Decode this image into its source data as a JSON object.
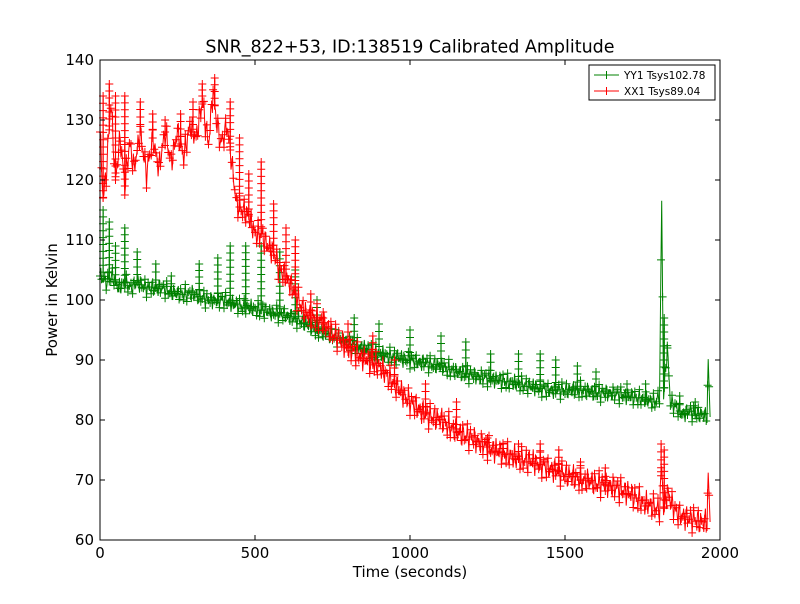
{
  "chart_data": {
    "type": "line",
    "title": "SNR_822+53, ID:138519 Calibrated Amplitude",
    "xlabel": "Time (seconds)",
    "ylabel": "Power in Kelvin",
    "xlim": [
      0,
      2000
    ],
    "ylim": [
      60,
      140
    ],
    "xticks": [
      {
        "value": 0,
        "label": "0"
      },
      {
        "value": 500,
        "label": "500"
      },
      {
        "value": 1000,
        "label": "1000"
      },
      {
        "value": 1500,
        "label": "1500"
      },
      {
        "value": 2000,
        "label": "2000"
      }
    ],
    "yticks": [
      {
        "value": 60,
        "label": "60"
      },
      {
        "value": 70,
        "label": "70"
      },
      {
        "value": 80,
        "label": "80"
      },
      {
        "value": 90,
        "label": "90"
      },
      {
        "value": 100,
        "label": "100"
      },
      {
        "value": 110,
        "label": "110"
      },
      {
        "value": 120,
        "label": "120"
      },
      {
        "value": 130,
        "label": "130"
      },
      {
        "value": 140,
        "label": "140"
      }
    ],
    "grid": false,
    "legend_position": "top-right",
    "marker": "+",
    "series": [
      {
        "name": "YY1 Tsys102.78",
        "color": "#008000",
        "points": [
          [
            0,
            104
          ],
          [
            20,
            103
          ],
          [
            40,
            104
          ],
          [
            60,
            102
          ],
          [
            80,
            103
          ],
          [
            100,
            102
          ],
          [
            120,
            103
          ],
          [
            150,
            102
          ],
          [
            200,
            102
          ],
          [
            250,
            101
          ],
          [
            300,
            101
          ],
          [
            350,
            100
          ],
          [
            400,
            100
          ],
          [
            450,
            99
          ],
          [
            500,
            98.5
          ],
          [
            550,
            98
          ],
          [
            600,
            97.5
          ],
          [
            650,
            96.5
          ],
          [
            700,
            95
          ],
          [
            750,
            94
          ],
          [
            800,
            93
          ],
          [
            850,
            92
          ],
          [
            900,
            91
          ],
          [
            950,
            90.5
          ],
          [
            1000,
            90
          ],
          [
            1050,
            89.5
          ],
          [
            1100,
            89
          ],
          [
            1150,
            88
          ],
          [
            1200,
            87.5
          ],
          [
            1250,
            87
          ],
          [
            1300,
            86.5
          ],
          [
            1350,
            86
          ],
          [
            1400,
            85.5
          ],
          [
            1450,
            85
          ],
          [
            1500,
            85
          ],
          [
            1550,
            85
          ],
          [
            1600,
            84.5
          ],
          [
            1650,
            84.5
          ],
          [
            1700,
            84
          ],
          [
            1750,
            83.5
          ],
          [
            1790,
            83
          ],
          [
            1805,
            84
          ],
          [
            1812,
            117
          ],
          [
            1818,
            84
          ],
          [
            1830,
            92
          ],
          [
            1840,
            83
          ],
          [
            1860,
            82
          ],
          [
            1880,
            81
          ],
          [
            1900,
            81.5
          ],
          [
            1920,
            81
          ],
          [
            1940,
            81
          ],
          [
            1958,
            80.5
          ],
          [
            1962,
            90
          ],
          [
            1968,
            80.5
          ]
        ],
        "spikes": [
          [
            10,
            115
          ],
          [
            30,
            113
          ],
          [
            50,
            109
          ],
          [
            80,
            112
          ],
          [
            120,
            108
          ],
          [
            180,
            106
          ],
          [
            230,
            104
          ],
          [
            320,
            106
          ],
          [
            380,
            107
          ],
          [
            420,
            109
          ],
          [
            470,
            109
          ],
          [
            520,
            109
          ],
          [
            580,
            108
          ],
          [
            630,
            105
          ],
          [
            700,
            100
          ],
          [
            820,
            97
          ],
          [
            900,
            96
          ],
          [
            1000,
            95
          ],
          [
            1100,
            94
          ],
          [
            1180,
            93
          ],
          [
            1260,
            91
          ],
          [
            1350,
            91
          ],
          [
            1420,
            91
          ],
          [
            1470,
            90
          ],
          [
            1540,
            89
          ],
          [
            1600,
            88
          ],
          [
            1700,
            86
          ],
          [
            1760,
            86
          ],
          [
            1820,
            97
          ],
          [
            1830,
            92
          ],
          [
            1870,
            84
          ],
          [
            1920,
            83
          ]
        ]
      },
      {
        "name": "XX1 Tsys89.04",
        "color": "#ff0000",
        "points": [
          [
            0,
            128
          ],
          [
            10,
            117
          ],
          [
            20,
            121
          ],
          [
            35,
            133
          ],
          [
            50,
            120
          ],
          [
            65,
            127
          ],
          [
            80,
            119
          ],
          [
            95,
            126
          ],
          [
            110,
            122
          ],
          [
            130,
            128
          ],
          [
            150,
            121
          ],
          [
            170,
            127
          ],
          [
            190,
            122
          ],
          [
            210,
            128
          ],
          [
            230,
            123
          ],
          [
            250,
            128
          ],
          [
            270,
            124
          ],
          [
            290,
            129
          ],
          [
            310,
            127
          ],
          [
            330,
            133
          ],
          [
            350,
            126
          ],
          [
            365,
            135
          ],
          [
            375,
            130
          ],
          [
            390,
            126
          ],
          [
            410,
            129
          ],
          [
            425,
            123
          ],
          [
            440,
            116
          ],
          [
            460,
            115
          ],
          [
            480,
            114
          ],
          [
            500,
            111
          ],
          [
            520,
            111
          ],
          [
            540,
            109
          ],
          [
            560,
            108
          ],
          [
            580,
            105
          ],
          [
            600,
            104
          ],
          [
            620,
            102
          ],
          [
            640,
            100
          ],
          [
            660,
            98
          ],
          [
            680,
            97
          ],
          [
            700,
            97
          ],
          [
            720,
            96
          ],
          [
            740,
            95
          ],
          [
            760,
            94
          ],
          [
            780,
            93
          ],
          [
            800,
            92
          ],
          [
            830,
            91
          ],
          [
            860,
            90
          ],
          [
            900,
            89
          ],
          [
            950,
            86
          ],
          [
            1000,
            83
          ],
          [
            1050,
            81
          ],
          [
            1100,
            80
          ],
          [
            1150,
            78
          ],
          [
            1200,
            77
          ],
          [
            1250,
            75.5
          ],
          [
            1300,
            74.5
          ],
          [
            1350,
            73.5
          ],
          [
            1400,
            73
          ],
          [
            1450,
            72
          ],
          [
            1500,
            71
          ],
          [
            1550,
            70
          ],
          [
            1600,
            69.5
          ],
          [
            1650,
            69
          ],
          [
            1700,
            68
          ],
          [
            1730,
            67
          ],
          [
            1760,
            66
          ],
          [
            1790,
            65.5
          ],
          [
            1805,
            65
          ],
          [
            1812,
            73
          ],
          [
            1818,
            65
          ],
          [
            1830,
            68
          ],
          [
            1845,
            66
          ],
          [
            1860,
            64.5
          ],
          [
            1880,
            64
          ],
          [
            1900,
            63.5
          ],
          [
            1920,
            63.5
          ],
          [
            1940,
            63
          ],
          [
            1958,
            63
          ],
          [
            1962,
            71
          ],
          [
            1968,
            63
          ]
        ],
        "spikes": [
          [
            10,
            134
          ],
          [
            30,
            136
          ],
          [
            50,
            134
          ],
          [
            80,
            134
          ],
          [
            130,
            133
          ],
          [
            170,
            131
          ],
          [
            210,
            130
          ],
          [
            260,
            131
          ],
          [
            300,
            133
          ],
          [
            330,
            136
          ],
          [
            370,
            137
          ],
          [
            420,
            133
          ],
          [
            450,
            127
          ],
          [
            480,
            121
          ],
          [
            520,
            123
          ],
          [
            560,
            116
          ],
          [
            600,
            112
          ],
          [
            630,
            110
          ],
          [
            680,
            101
          ],
          [
            720,
            98
          ],
          [
            800,
            96
          ],
          [
            880,
            94
          ],
          [
            950,
            90
          ],
          [
            1050,
            86
          ],
          [
            1150,
            83
          ],
          [
            1250,
            77
          ],
          [
            1300,
            76
          ],
          [
            1350,
            76
          ],
          [
            1420,
            76
          ],
          [
            1480,
            75
          ],
          [
            1550,
            73
          ],
          [
            1630,
            72
          ],
          [
            1810,
            76
          ],
          [
            1820,
            75
          ]
        ]
      }
    ]
  }
}
